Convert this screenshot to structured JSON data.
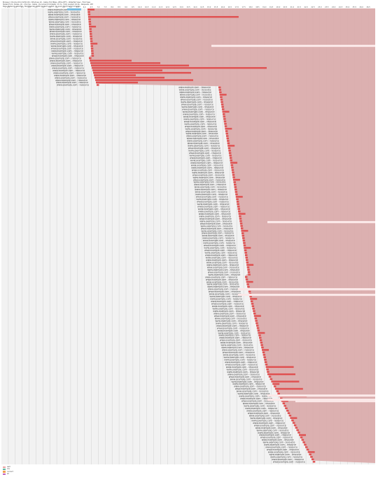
{
  "header": {
    "lines": [
      "Browser: Chrome 63.0.3239.132 / Windows 10 - Cable (5/1 Mbps, 28ms RTT) - Waterfall View - First View",
      "Tested From: Dulles, VA - Chrome - Cable - Document Complete: 13.7s - Fully Loaded: 16.9s - Requests: 187",
      "Page: Network waterfall - Start Render, DOM Content Loaded, On Load, Document Complete"
    ]
  },
  "timeline": {
    "tick_labels": [
      "0.5",
      "1.0",
      "1.5",
      "2.0",
      "2.5",
      "3.0",
      "3.5",
      "4.0",
      "4.5",
      "5.0",
      "5.5",
      "6.0",
      "6.5",
      "7.0",
      "7.5",
      "8.0",
      "8.5",
      "9.0",
      "9.5",
      "10.0",
      "10.5",
      "11.0",
      "11.5",
      "12.0",
      "12.5",
      "13.0",
      "13.5",
      "14.0",
      "14.5",
      "15.0",
      "15.5",
      "16.0",
      "16.5",
      "17.0",
      "17.5",
      "18.0",
      "18.5",
      "19.0",
      "19.5",
      "20.0",
      "20.5",
      "21.0",
      "21.5",
      "22.0",
      "22.5",
      "23.0",
      "23.5",
      "24.0",
      "24.5",
      "25.0",
      "25.5",
      "26.0",
      "26.5"
    ],
    "total_seconds": 27,
    "row_count": 187,
    "label_text": "www.example.com - resource"
  },
  "legend": {
    "items": [
      {
        "label": "wait",
        "color": "#e8a0a0"
      },
      {
        "label": "dns",
        "color": "#5fb39b"
      },
      {
        "label": "connect",
        "color": "#f0a050"
      },
      {
        "label": "ssl",
        "color": "#c060c0"
      },
      {
        "label": "content download",
        "color": "#e04040"
      },
      {
        "label": "Start Render",
        "color": "#3aa040"
      },
      {
        "label": "DOM Content Loaded",
        "color": "#d070d0"
      },
      {
        "label": "On Load",
        "color": "#6090d0"
      }
    ]
  },
  "colors": {
    "background_pane": "#f2f2f2",
    "long_wait": "#d9a8a8",
    "download": "#e05050",
    "highlight_row": "#79c0e6",
    "stripe": "#fbe8e8"
  }
}
